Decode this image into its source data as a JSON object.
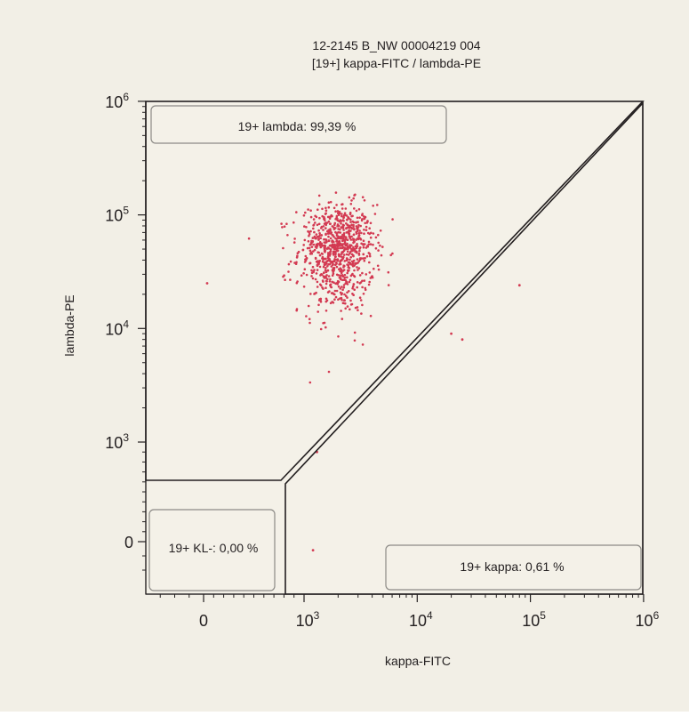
{
  "colors": {
    "panel_bg": "#f2efe6",
    "plot_bg": "#f4f1e8",
    "dot": "#d33a52",
    "axis": "#231f20",
    "gate_label_border": "#8c8a86"
  },
  "chart_data": {
    "type": "scatter",
    "title": "12-2145 B_NW 00004219 004",
    "subtitle": "[19+] kappa-FITC / lambda-PE",
    "xlabel": "kappa-FITC",
    "ylabel": "lambda-PE",
    "axis_scale": "biexponential",
    "xlim": [
      -400,
      1000000
    ],
    "ylim": [
      -300,
      1000000
    ],
    "x_ticks": [
      {
        "value": 0,
        "base": "0",
        "exp": ""
      },
      {
        "value": 1000,
        "base": "10",
        "exp": "3"
      },
      {
        "value": 10000,
        "base": "10",
        "exp": "4"
      },
      {
        "value": 100000,
        "base": "10",
        "exp": "5"
      },
      {
        "value": 1000000,
        "base": "10",
        "exp": "6"
      }
    ],
    "y_ticks": [
      {
        "value": 0,
        "base": "0",
        "exp": ""
      },
      {
        "value": 1000,
        "base": "10",
        "exp": "3"
      },
      {
        "value": 10000,
        "base": "10",
        "exp": "4"
      },
      {
        "value": 100000,
        "base": "10",
        "exp": "5"
      },
      {
        "value": 1000000,
        "base": "10",
        "exp": "6"
      }
    ],
    "gates": [
      {
        "name": "19+ lambda",
        "percent": 99.39,
        "label": "19+ lambda: 99,39 %"
      },
      {
        "name": "19+ kappa",
        "percent": 0.61,
        "label": "19+ kappa: 0,61 %"
      },
      {
        "name": "19+ KL-",
        "percent": 0.0,
        "label": "19+ KL-: 0,00 %"
      }
    ],
    "events": {
      "count": 900,
      "cluster_center": {
        "x": 2000,
        "y": 50000
      },
      "outliers": [
        {
          "x": 35,
          "y": 25000
        },
        {
          "x": 1300,
          "y": 900
        },
        {
          "x": 1200,
          "y": -60
        },
        {
          "x": 20000,
          "y": 9000
        },
        {
          "x": 25000,
          "y": 8000
        },
        {
          "x": 80000,
          "y": 24000
        }
      ]
    }
  }
}
